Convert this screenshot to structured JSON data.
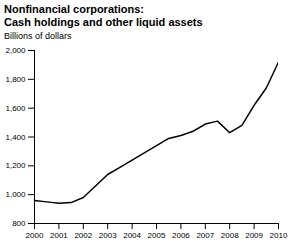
{
  "chart_data": {
    "type": "line",
    "title": [
      "Nonfinancial corporations:",
      "Cash holdings and other liquid assets"
    ],
    "subtitle": "Billions of dollars",
    "x": [
      2000,
      2000.5,
      2001,
      2001.5,
      2002,
      2002.5,
      2003,
      2003.5,
      2004,
      2004.5,
      2005,
      2005.5,
      2006,
      2006.5,
      2007,
      2007.5,
      2008,
      2008.5,
      2009,
      2009.5,
      2010
    ],
    "values": [
      960,
      950,
      940,
      945,
      980,
      1060,
      1140,
      1190,
      1240,
      1290,
      1340,
      1390,
      1410,
      1440,
      1490,
      1510,
      1430,
      1480,
      1620,
      1740,
      1920
    ],
    "color": "#000000",
    "xlim": [
      2000,
      2010
    ],
    "xticks": [
      2000,
      2001,
      2002,
      2003,
      2004,
      2005,
      2006,
      2007,
      2008,
      2009,
      2010
    ],
    "ylim": [
      800,
      2000
    ],
    "yticks": [
      800,
      {
        "value": 1000,
        "label": "1,000"
      },
      {
        "value": 1200,
        "label": "1,200"
      },
      {
        "value": 1400,
        "label": "1,400"
      },
      {
        "value": 1600,
        "label": "1,600"
      },
      {
        "value": 1800,
        "label": "1,800"
      },
      {
        "value": 2000,
        "label": "2,000"
      }
    ],
    "grid": false
  }
}
